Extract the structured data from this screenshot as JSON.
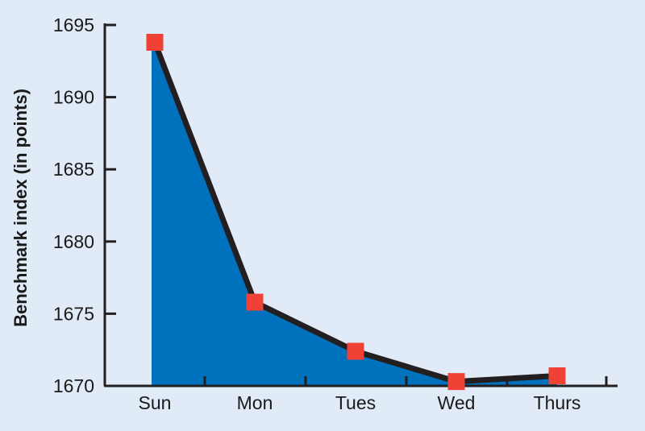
{
  "chart_data": {
    "type": "area",
    "categories": [
      "Sun",
      "Mon",
      "Tues",
      "Wed",
      "Thurs"
    ],
    "values": [
      1693.8,
      1675.8,
      1672.4,
      1670.3,
      1670.7
    ],
    "title": "",
    "xlabel": "",
    "ylabel": "Benchmark index (in points)",
    "ylim": [
      1670,
      1695
    ],
    "yticks": [
      1670,
      1675,
      1680,
      1685,
      1690,
      1695
    ],
    "grid": false,
    "legend": "none",
    "colors": {
      "background": "#e1ebf7",
      "area": "#0071bc",
      "line": "#231f20",
      "marker": "#ef4136",
      "axis": "#231f20"
    }
  }
}
